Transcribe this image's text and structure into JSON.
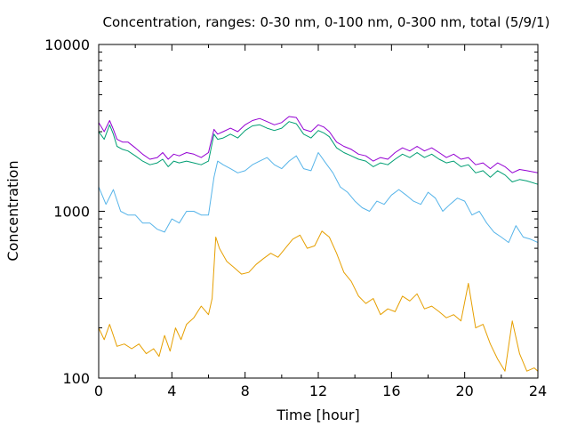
{
  "chart_data": {
    "type": "line",
    "title": "Concentration, ranges: 0-30 nm, 0-100 nm, 0-300 nm, total (5/9/1)",
    "xlabel": "Time [hour]",
    "ylabel": "Concentration",
    "xlim": [
      0,
      24
    ],
    "ylim": [
      100,
      10000
    ],
    "yscale": "log",
    "grid": false,
    "x_ticks": [
      0,
      4,
      8,
      12,
      16,
      20,
      24
    ],
    "x_tick_labels": [
      "0",
      "4",
      "8",
      "12",
      "16",
      "20",
      "24"
    ],
    "y_ticks": [
      100,
      1000,
      10000
    ],
    "y_tick_labels": [
      "100",
      "1000",
      "10000"
    ],
    "series": [
      {
        "color": "#9400d3",
        "x": [
          0,
          0.3,
          0.6,
          0.8,
          1.0,
          1.3,
          1.6,
          2.0,
          2.4,
          2.8,
          3.2,
          3.5,
          3.8,
          4.1,
          4.4,
          4.8,
          5.2,
          5.6,
          6.0,
          6.3,
          6.5,
          6.8,
          7.2,
          7.6,
          8.0,
          8.4,
          8.8,
          9.2,
          9.6,
          10.0,
          10.4,
          10.8,
          11.2,
          11.6,
          12.0,
          12.3,
          12.6,
          13.0,
          13.4,
          13.8,
          14.2,
          14.6,
          15.0,
          15.4,
          15.8,
          16.2,
          16.6,
          17.0,
          17.4,
          17.8,
          18.2,
          18.6,
          19.0,
          19.4,
          19.8,
          20.2,
          20.6,
          21.0,
          21.4,
          21.8,
          22.2,
          22.6,
          23.0,
          23.4,
          24.0
        ],
        "y": [
          3400,
          3000,
          3500,
          3100,
          2700,
          2600,
          2600,
          2400,
          2200,
          2050,
          2100,
          2250,
          2050,
          2200,
          2150,
          2250,
          2200,
          2100,
          2250,
          3100,
          2900,
          3000,
          3150,
          3000,
          3300,
          3500,
          3600,
          3450,
          3300,
          3400,
          3700,
          3650,
          3100,
          3000,
          3300,
          3200,
          3000,
          2600,
          2450,
          2350,
          2200,
          2150,
          2000,
          2100,
          2050,
          2250,
          2400,
          2300,
          2450,
          2300,
          2400,
          2250,
          2100,
          2200,
          2050,
          2100,
          1900,
          1950,
          1800,
          1950,
          1850,
          1700,
          1780,
          1750,
          1700
        ]
      },
      {
        "color": "#009e73",
        "x": [
          0,
          0.3,
          0.6,
          0.8,
          1.0,
          1.3,
          1.6,
          2.0,
          2.4,
          2.8,
          3.2,
          3.5,
          3.8,
          4.1,
          4.4,
          4.8,
          5.2,
          5.6,
          6.0,
          6.3,
          6.5,
          6.8,
          7.2,
          7.6,
          8.0,
          8.4,
          8.8,
          9.2,
          9.6,
          10.0,
          10.4,
          10.8,
          11.2,
          11.6,
          12.0,
          12.3,
          12.6,
          13.0,
          13.4,
          13.8,
          14.2,
          14.6,
          15.0,
          15.4,
          15.8,
          16.2,
          16.6,
          17.0,
          17.4,
          17.8,
          18.2,
          18.6,
          19.0,
          19.4,
          19.8,
          20.2,
          20.6,
          21.0,
          21.4,
          21.8,
          22.2,
          22.6,
          23.0,
          23.4,
          24.0
        ],
        "y": [
          3000,
          2700,
          3300,
          2900,
          2450,
          2350,
          2300,
          2150,
          2000,
          1900,
          1950,
          2050,
          1850,
          2000,
          1950,
          2000,
          1950,
          1900,
          2000,
          2900,
          2700,
          2750,
          2900,
          2750,
          3050,
          3250,
          3300,
          3150,
          3050,
          3150,
          3450,
          3350,
          2900,
          2750,
          3050,
          2950,
          2800,
          2400,
          2250,
          2150,
          2050,
          2000,
          1850,
          1950,
          1900,
          2050,
          2200,
          2100,
          2250,
          2100,
          2200,
          2050,
          1950,
          2000,
          1850,
          1900,
          1700,
          1750,
          1600,
          1750,
          1650,
          1500,
          1550,
          1520,
          1450
        ]
      },
      {
        "color": "#56b4e9",
        "x": [
          0,
          0.4,
          0.8,
          1.2,
          1.6,
          2.0,
          2.4,
          2.8,
          3.2,
          3.6,
          4.0,
          4.4,
          4.8,
          5.2,
          5.6,
          6.0,
          6.3,
          6.5,
          6.8,
          7.2,
          7.6,
          8.0,
          8.4,
          8.8,
          9.2,
          9.6,
          10.0,
          10.4,
          10.8,
          11.2,
          11.6,
          12.0,
          12.4,
          12.8,
          13.2,
          13.6,
          14.0,
          14.4,
          14.8,
          15.2,
          15.6,
          16.0,
          16.4,
          16.8,
          17.2,
          17.6,
          18.0,
          18.4,
          18.8,
          19.2,
          19.6,
          20.0,
          20.4,
          20.8,
          21.2,
          21.6,
          22.0,
          22.4,
          22.8,
          23.2,
          23.6,
          24.0
        ],
        "y": [
          1400,
          1100,
          1350,
          1000,
          950,
          950,
          850,
          850,
          780,
          750,
          900,
          850,
          1000,
          1000,
          950,
          950,
          1600,
          2000,
          1900,
          1800,
          1700,
          1750,
          1900,
          2000,
          2100,
          1900,
          1800,
          2000,
          2150,
          1800,
          1750,
          2250,
          1950,
          1700,
          1400,
          1300,
          1150,
          1050,
          1000,
          1150,
          1100,
          1250,
          1350,
          1250,
          1150,
          1100,
          1300,
          1200,
          1000,
          1100,
          1200,
          1150,
          950,
          1000,
          850,
          750,
          700,
          650,
          820,
          700,
          680,
          650
        ]
      },
      {
        "color": "#e69f00",
        "x": [
          0,
          0.3,
          0.6,
          1.0,
          1.4,
          1.8,
          2.2,
          2.6,
          3.0,
          3.3,
          3.6,
          3.9,
          4.2,
          4.5,
          4.8,
          5.2,
          5.6,
          6.0,
          6.2,
          6.4,
          6.6,
          7.0,
          7.4,
          7.8,
          8.2,
          8.6,
          9.0,
          9.4,
          9.8,
          10.2,
          10.6,
          11.0,
          11.4,
          11.8,
          12.2,
          12.6,
          13.0,
          13.4,
          13.8,
          14.2,
          14.6,
          15.0,
          15.4,
          15.8,
          16.2,
          16.6,
          17.0,
          17.4,
          17.8,
          18.2,
          18.6,
          19.0,
          19.4,
          19.8,
          20.2,
          20.6,
          21.0,
          21.4,
          21.8,
          22.2,
          22.6,
          23.0,
          23.4,
          23.8,
          24.0
        ],
        "y": [
          200,
          170,
          210,
          155,
          160,
          150,
          160,
          140,
          150,
          135,
          180,
          145,
          200,
          170,
          210,
          230,
          270,
          240,
          300,
          700,
          600,
          500,
          460,
          420,
          430,
          480,
          520,
          560,
          530,
          600,
          680,
          720,
          600,
          620,
          760,
          700,
          560,
          430,
          380,
          310,
          280,
          300,
          240,
          260,
          250,
          310,
          290,
          320,
          260,
          270,
          250,
          230,
          240,
          220,
          370,
          200,
          210,
          160,
          130,
          110,
          220,
          140,
          110,
          115,
          110
        ]
      }
    ]
  }
}
